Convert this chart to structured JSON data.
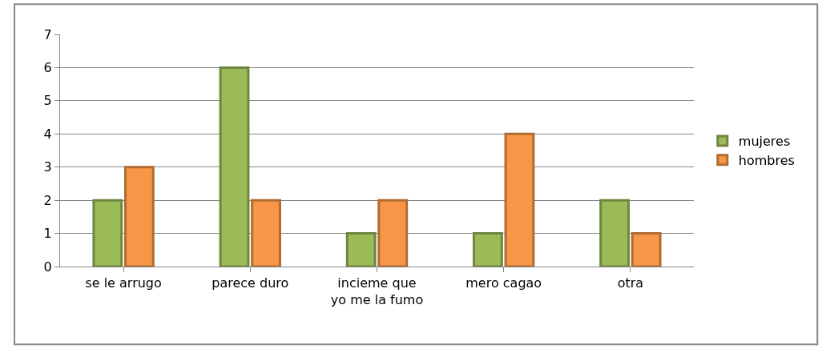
{
  "chart_data": {
    "type": "bar",
    "categories": [
      "se le arrugo",
      "parece duro",
      "incieme que yo me la fumo",
      "mero cagao",
      "otra"
    ],
    "series": [
      {
        "name": "mujeres",
        "color": "#9bbb59",
        "values": [
          2,
          6,
          1,
          1,
          2
        ]
      },
      {
        "name": "hombres",
        "color": "#f79646",
        "values": [
          3,
          2,
          2,
          4,
          1
        ]
      }
    ],
    "ylim": [
      0,
      7
    ],
    "yticks": [
      0,
      1,
      2,
      3,
      4,
      5,
      6,
      7
    ],
    "grid": "y",
    "legend": "right"
  }
}
